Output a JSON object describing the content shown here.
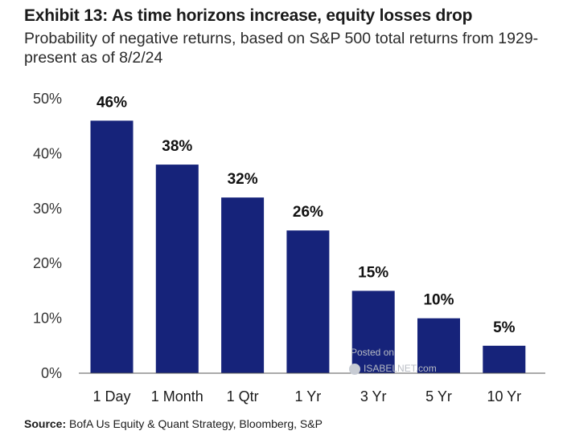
{
  "header": {
    "title": "Exhibit 13: As time horizons increase, equity losses drop",
    "subtitle": "Probability of negative returns, based on S&P 500 total returns from 1929-present as of 8/2/24"
  },
  "footer": {
    "source_label": "Source:",
    "source_text": "BofA Us Equity & Quant Strategy, Bloomberg, S&P"
  },
  "watermark": {
    "line1": "Posted on",
    "line2": "ISABELNET.com"
  },
  "colors": {
    "bar": "#16237a",
    "axis": "#555555"
  },
  "chart_data": {
    "type": "bar",
    "title": "Exhibit 13: As time horizons increase, equity losses drop",
    "subtitle": "Probability of negative returns, based on S&P 500 total returns from 1929-present as of 8/2/24",
    "categories": [
      "1 Day",
      "1 Month",
      "1 Qtr",
      "1 Yr",
      "3 Yr",
      "5 Yr",
      "10 Yr"
    ],
    "values": [
      46,
      38,
      32,
      26,
      15,
      10,
      5
    ],
    "value_labels": [
      "46%",
      "38%",
      "32%",
      "26%",
      "15%",
      "10%",
      "5%"
    ],
    "yticks": [
      0,
      10,
      20,
      30,
      40,
      50
    ],
    "ytick_labels": [
      "0%",
      "10%",
      "20%",
      "30%",
      "40%",
      "50%"
    ],
    "ylim": [
      0,
      50
    ],
    "xlabel": "",
    "ylabel": "",
    "grid": false,
    "legend": "none"
  }
}
